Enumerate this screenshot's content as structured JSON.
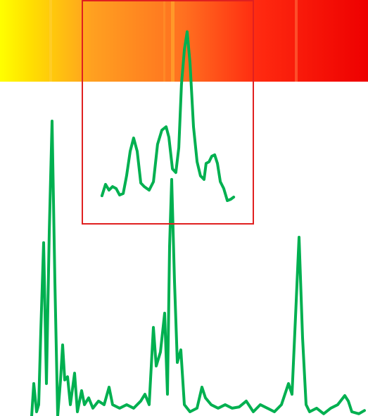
{
  "chart_data": [
    {
      "type": "line",
      "color": "#00b050",
      "xlim": [
        0,
        523
      ],
      "ylim": [
        0,
        100
      ],
      "x": [
        45,
        48,
        52,
        55,
        58,
        62,
        66,
        70,
        74,
        78,
        82,
        86,
        89,
        92,
        96,
        100,
        106,
        110,
        116,
        120,
        126,
        132,
        140,
        148,
        155,
        160,
        170,
        180,
        190,
        200,
        206,
        212,
        218,
        222,
        228,
        234,
        238,
        241,
        244,
        248,
        252,
        257,
        262,
        270,
        280,
        287,
        292,
        300,
        310,
        320,
        330,
        340,
        350,
        360,
        370,
        380,
        390,
        400,
        410,
        415,
        420,
        425,
        430,
        435,
        440,
        450,
        460,
        470,
        480,
        490,
        495,
        500,
        510,
        518
      ],
      "values": [
        0,
        10,
        1.3,
        3.5,
        26.2,
        53.4,
        10,
        56.6,
        90.9,
        41.4,
        0,
        11.1,
        21.9,
        11.1,
        12.1,
        3.5,
        13.2,
        1.3,
        7.8,
        3.5,
        5.6,
        2.4,
        4.6,
        3.5,
        8.9,
        3.5,
        2.4,
        3.5,
        2.4,
        4.6,
        6.7,
        3.5,
        27.3,
        15.4,
        19.7,
        31.7,
        6.7,
        52.3,
        72.9,
        41.4,
        16.5,
        20.4,
        3.5,
        1.3,
        2.4,
        8.9,
        5.6,
        3.5,
        2.4,
        3.5,
        2.4,
        2.8,
        4.6,
        1.3,
        3.5,
        2.4,
        1.3,
        3.5,
        10,
        6.7,
        30.6,
        55.1,
        24.1,
        3.5,
        1.3,
        2.4,
        0.7,
        2.4,
        3.5,
        6.3,
        4.6,
        1.3,
        0.7,
        1.7
      ]
    },
    {
      "type": "line",
      "color": "#00b050",
      "frame_color": "#e02020",
      "xlim": [
        0,
        100
      ],
      "ylim": [
        0,
        100
      ],
      "x": [
        11.5,
        13.6,
        15.6,
        17.7,
        19.8,
        21.8,
        23.9,
        25.9,
        28.0,
        30.0,
        32.1,
        34.2,
        36.2,
        39.1,
        41.6,
        44.0,
        46.5,
        49.0,
        50.6,
        52.7,
        54.7,
        56.4,
        58.0,
        59.7,
        61.3,
        63.0,
        65.0,
        67.1,
        69.1,
        71.2,
        72.4,
        74.1,
        75.7,
        77.4,
        79.0,
        80.7,
        82.7,
        84.8,
        86.8,
        88.5
      ],
      "values": [
        12.6,
        17.7,
        15.1,
        16.7,
        15.8,
        12.9,
        13.6,
        21.5,
        32.5,
        38.5,
        32.5,
        18.3,
        16.7,
        15.1,
        18.9,
        35.6,
        42.0,
        43.5,
        38.8,
        24.6,
        23.0,
        34.1,
        62.5,
        78.2,
        86.1,
        71.9,
        43.5,
        27.8,
        21.5,
        19.9,
        27.1,
        27.8,
        30.3,
        30.9,
        27.1,
        18.9,
        15.8,
        10.4,
        11.0,
        12.0
      ]
    }
  ]
}
